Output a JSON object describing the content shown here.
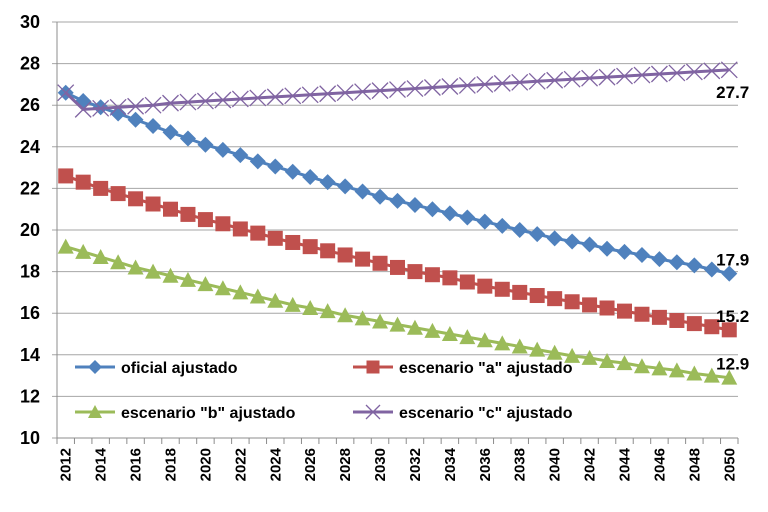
{
  "chart_data": {
    "type": "line",
    "title": "",
    "xlabel": "",
    "ylabel": "",
    "ylim": [
      10,
      30
    ],
    "yticks": [
      "10",
      "12",
      "14",
      "16",
      "18",
      "20",
      "22",
      "24",
      "26",
      "28",
      "30"
    ],
    "grid": true,
    "legend_position": "bottom-inside",
    "x": [
      2012,
      2013,
      2014,
      2015,
      2016,
      2017,
      2018,
      2019,
      2020,
      2021,
      2022,
      2023,
      2024,
      2025,
      2026,
      2027,
      2028,
      2029,
      2030,
      2031,
      2032,
      2033,
      2034,
      2035,
      2036,
      2037,
      2038,
      2039,
      2040,
      2041,
      2042,
      2043,
      2044,
      2045,
      2046,
      2047,
      2048,
      2049,
      2050
    ],
    "xtick_labels": [
      "2012",
      "2014",
      "2016",
      "2018",
      "2020",
      "2022",
      "2024",
      "2026",
      "2028",
      "2030",
      "2032",
      "2034",
      "2036",
      "2038",
      "2040",
      "2042",
      "2044",
      "2046",
      "2048",
      "2050"
    ],
    "series": [
      {
        "name": "oficial ajustado",
        "color": "#4F81BD",
        "marker": "diamond",
        "end_label": "17.9",
        "values": [
          26.6,
          26.2,
          25.9,
          25.6,
          25.3,
          25.0,
          24.7,
          24.4,
          24.1,
          23.85,
          23.6,
          23.3,
          23.05,
          22.8,
          22.55,
          22.3,
          22.1,
          21.85,
          21.6,
          21.4,
          21.2,
          21.0,
          20.8,
          20.6,
          20.4,
          20.2,
          20.0,
          19.8,
          19.6,
          19.45,
          19.3,
          19.1,
          18.95,
          18.8,
          18.6,
          18.45,
          18.3,
          18.1,
          17.9
        ]
      },
      {
        "name": "escenario \"a\" ajustado",
        "color": "#C0504D",
        "marker": "square",
        "end_label": "15.2",
        "values": [
          22.6,
          22.3,
          22.0,
          21.75,
          21.5,
          21.25,
          21.0,
          20.75,
          20.5,
          20.3,
          20.05,
          19.85,
          19.6,
          19.4,
          19.2,
          19.0,
          18.8,
          18.6,
          18.4,
          18.2,
          18.0,
          17.85,
          17.7,
          17.5,
          17.3,
          17.15,
          17.0,
          16.85,
          16.7,
          16.55,
          16.4,
          16.25,
          16.1,
          15.95,
          15.8,
          15.65,
          15.5,
          15.35,
          15.2
        ]
      },
      {
        "name": "escenario \"b\" ajustado",
        "color": "#9BBB59",
        "marker": "triangle",
        "end_label": "12.9",
        "values": [
          19.2,
          18.95,
          18.7,
          18.45,
          18.2,
          18.0,
          17.8,
          17.6,
          17.4,
          17.2,
          17.0,
          16.8,
          16.6,
          16.4,
          16.25,
          16.1,
          15.9,
          15.75,
          15.6,
          15.45,
          15.3,
          15.15,
          15.0,
          14.85,
          14.7,
          14.55,
          14.4,
          14.25,
          14.1,
          13.95,
          13.85,
          13.7,
          13.6,
          13.45,
          13.35,
          13.25,
          13.1,
          13.0,
          12.9
        ]
      },
      {
        "name": "escenario \"c\" ajustado",
        "color": "#8064A2",
        "marker": "x",
        "end_label": "27.7",
        "values": [
          26.6,
          25.8,
          25.85,
          25.9,
          25.95,
          26.0,
          26.1,
          26.15,
          26.2,
          26.25,
          26.3,
          26.35,
          26.4,
          26.45,
          26.5,
          26.55,
          26.6,
          26.65,
          26.7,
          26.75,
          26.8,
          26.85,
          26.9,
          26.95,
          27.0,
          27.05,
          27.1,
          27.15,
          27.2,
          27.25,
          27.3,
          27.35,
          27.4,
          27.45,
          27.5,
          27.55,
          27.6,
          27.65,
          27.7
        ]
      }
    ]
  }
}
